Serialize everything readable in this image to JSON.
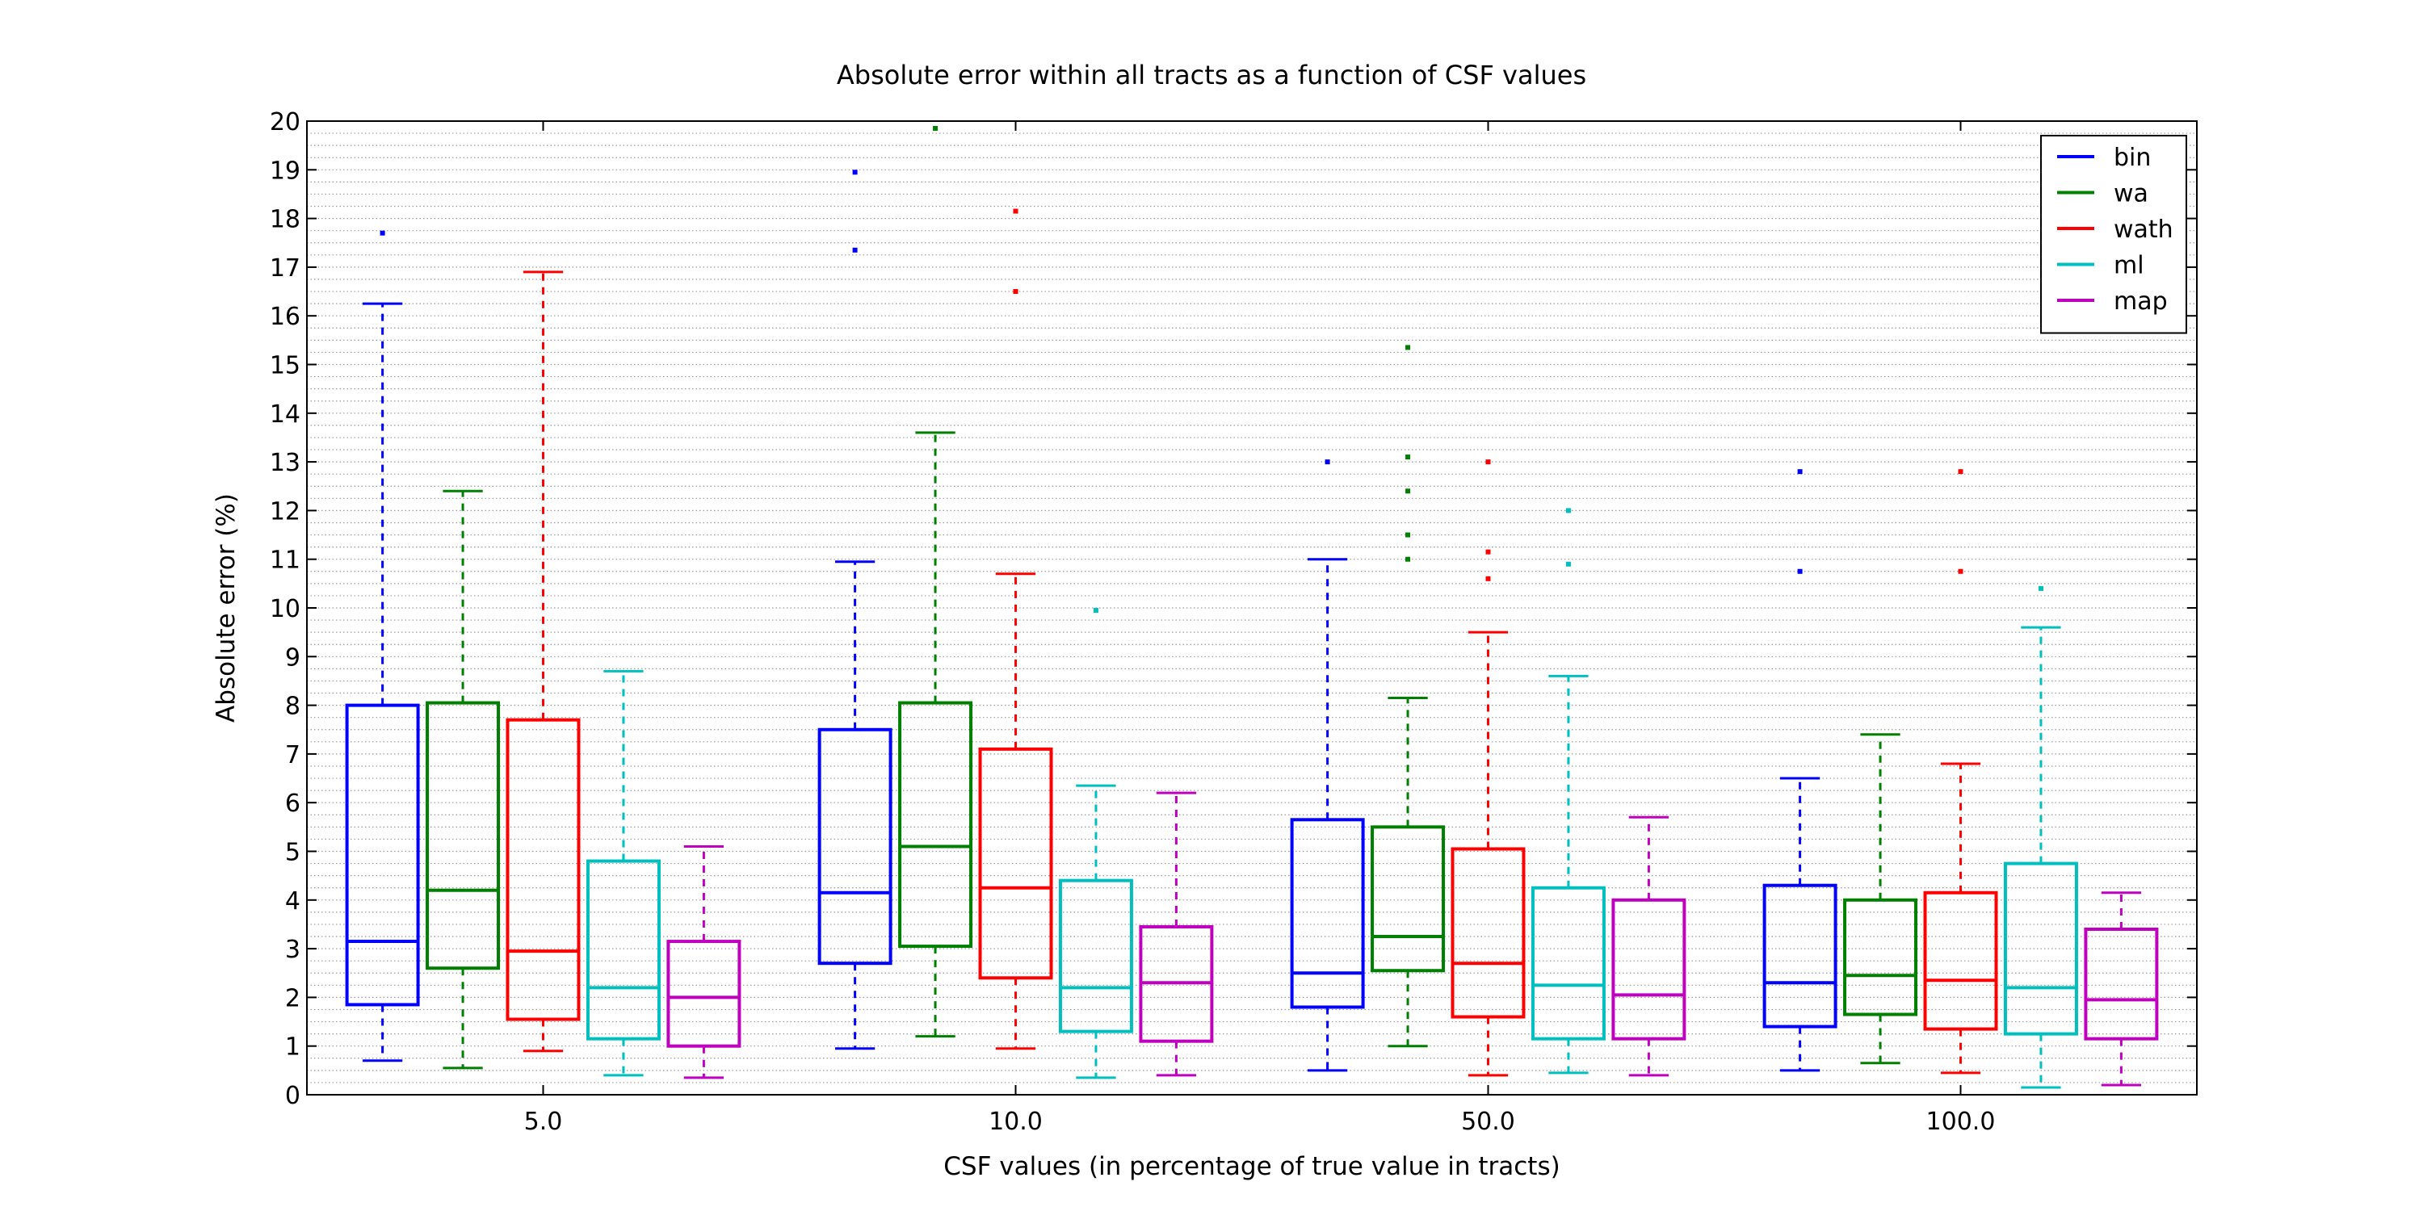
{
  "chart_data": {
    "type": "boxplot",
    "title": "Absolute error within all tracts as a function of CSF values",
    "xlabel": "CSF values (in percentage of true value in tracts)",
    "ylabel": "Absolute error (%)",
    "ylim": [
      0,
      20
    ],
    "yticks": [
      0,
      1,
      2,
      3,
      4,
      5,
      6,
      7,
      8,
      9,
      10,
      11,
      12,
      13,
      14,
      15,
      16,
      17,
      18,
      19,
      20
    ],
    "grid": "horizontal dotted, every 0.25",
    "legend_position": "top-right",
    "categories": [
      "5.0",
      "10.0",
      "50.0",
      "100.0"
    ],
    "series": [
      {
        "name": "bin",
        "color": "#0000ff",
        "boxes": [
          {
            "whislo": 0.7,
            "q1": 1.85,
            "med": 3.15,
            "q3": 8.0,
            "whishi": 16.25,
            "fliers": [
              17.7
            ]
          },
          {
            "whislo": 0.95,
            "q1": 2.7,
            "med": 4.15,
            "q3": 7.5,
            "whishi": 10.95,
            "fliers": [
              17.35,
              18.95
            ]
          },
          {
            "whislo": 0.5,
            "q1": 1.8,
            "med": 2.5,
            "q3": 5.65,
            "whishi": 11.0,
            "fliers": [
              13.0
            ]
          },
          {
            "whislo": 0.5,
            "q1": 1.4,
            "med": 2.3,
            "q3": 4.3,
            "whishi": 6.5,
            "fliers": [
              10.75,
              12.8
            ]
          }
        ]
      },
      {
        "name": "wa",
        "color": "#008000",
        "boxes": [
          {
            "whislo": 0.55,
            "q1": 2.6,
            "med": 4.2,
            "q3": 8.05,
            "whishi": 12.4,
            "fliers": []
          },
          {
            "whislo": 1.2,
            "q1": 3.05,
            "med": 5.1,
            "q3": 8.05,
            "whishi": 13.6,
            "fliers": [
              19.85
            ]
          },
          {
            "whislo": 1.0,
            "q1": 2.55,
            "med": 3.25,
            "q3": 5.5,
            "whishi": 8.15,
            "fliers": [
              11.0,
              11.5,
              12.4,
              13.1,
              15.35
            ]
          },
          {
            "whislo": 0.65,
            "q1": 1.65,
            "med": 2.45,
            "q3": 4.0,
            "whishi": 7.4,
            "fliers": []
          }
        ]
      },
      {
        "name": "wath",
        "color": "#ff0000",
        "boxes": [
          {
            "whislo": 0.9,
            "q1": 1.55,
            "med": 2.95,
            "q3": 7.7,
            "whishi": 16.9,
            "fliers": []
          },
          {
            "whislo": 0.95,
            "q1": 2.4,
            "med": 4.25,
            "q3": 7.1,
            "whishi": 10.7,
            "fliers": [
              16.5,
              18.15
            ]
          },
          {
            "whislo": 0.4,
            "q1": 1.6,
            "med": 2.7,
            "q3": 5.05,
            "whishi": 9.5,
            "fliers": [
              10.6,
              11.15,
              13.0
            ]
          },
          {
            "whislo": 0.45,
            "q1": 1.35,
            "med": 2.35,
            "q3": 4.15,
            "whishi": 6.8,
            "fliers": [
              10.75,
              12.8
            ]
          }
        ]
      },
      {
        "name": "ml",
        "color": "#00bfbf",
        "boxes": [
          {
            "whislo": 0.4,
            "q1": 1.15,
            "med": 2.2,
            "q3": 4.8,
            "whishi": 8.7,
            "fliers": []
          },
          {
            "whislo": 0.35,
            "q1": 1.3,
            "med": 2.2,
            "q3": 4.4,
            "whishi": 6.35,
            "fliers": [
              9.95
            ]
          },
          {
            "whislo": 0.45,
            "q1": 1.15,
            "med": 2.25,
            "q3": 4.25,
            "whishi": 8.6,
            "fliers": [
              10.9,
              12.0
            ]
          },
          {
            "whislo": 0.15,
            "q1": 1.25,
            "med": 2.2,
            "q3": 4.75,
            "whishi": 9.6,
            "fliers": [
              10.4
            ]
          }
        ]
      },
      {
        "name": "map",
        "color": "#bf00bf",
        "boxes": [
          {
            "whislo": 0.35,
            "q1": 1.0,
            "med": 2.0,
            "q3": 3.15,
            "whishi": 5.1,
            "fliers": []
          },
          {
            "whislo": 0.4,
            "q1": 1.1,
            "med": 2.3,
            "q3": 3.45,
            "whishi": 6.2,
            "fliers": []
          },
          {
            "whislo": 0.4,
            "q1": 1.15,
            "med": 2.05,
            "q3": 4.0,
            "whishi": 5.7,
            "fliers": []
          },
          {
            "whislo": 0.2,
            "q1": 1.15,
            "med": 1.95,
            "q3": 3.4,
            "whishi": 4.15,
            "fliers": []
          }
        ]
      }
    ]
  }
}
